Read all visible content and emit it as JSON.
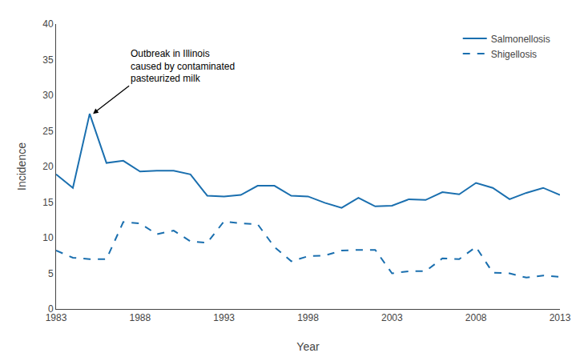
{
  "chart_data": {
    "type": "line",
    "xlabel": "Year",
    "ylabel": "Incidence",
    "x": [
      1983,
      1984,
      1985,
      1986,
      1987,
      1988,
      1989,
      1990,
      1991,
      1992,
      1993,
      1994,
      1995,
      1996,
      1997,
      1998,
      1999,
      2000,
      2001,
      2002,
      2003,
      2004,
      2005,
      2006,
      2007,
      2008,
      2009,
      2010,
      2011,
      2012,
      2013
    ],
    "series": [
      {
        "name": "Salmonellosis",
        "color": "#1a6faf",
        "line_style": "solid",
        "values": [
          18.9,
          17.0,
          27.4,
          20.5,
          20.8,
          19.3,
          19.4,
          19.4,
          18.9,
          15.9,
          15.8,
          16.0,
          17.3,
          17.3,
          15.9,
          15.8,
          14.9,
          14.2,
          15.6,
          14.4,
          14.5,
          15.4,
          15.3,
          16.4,
          16.1,
          17.7,
          17.0,
          15.4,
          16.3,
          17.0,
          16.0
        ]
      },
      {
        "name": "Shigellosis",
        "color": "#1a6faf",
        "line_style": "dashed",
        "values": [
          8.2,
          7.2,
          7.0,
          7.0,
          12.2,
          12.0,
          10.5,
          11.0,
          9.5,
          9.3,
          12.3,
          12.0,
          11.9,
          8.7,
          6.7,
          7.4,
          7.5,
          8.2,
          8.3,
          8.3,
          5.0,
          5.3,
          5.3,
          7.1,
          7.0,
          8.7,
          5.1,
          5.0,
          4.4,
          4.7,
          4.5
        ]
      }
    ],
    "annotations": [
      {
        "text": "Outbreak in Illinois\ncaused by contaminated\npasteurized milk",
        "x": 1985.2,
        "y": 27.4
      }
    ],
    "xlim": [
      1983,
      2013
    ],
    "xticks": [
      1983,
      1988,
      1993,
      1998,
      2003,
      2008,
      2013
    ],
    "ylim": [
      0,
      40
    ],
    "yticks": [
      0,
      5,
      10,
      15,
      20,
      25,
      30,
      35,
      40
    ],
    "legend": "upper right",
    "grid": false
  }
}
